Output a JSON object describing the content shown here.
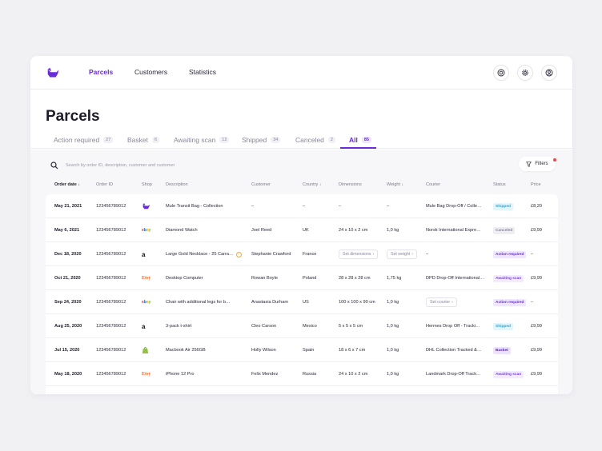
{
  "nav": {
    "parcels": "Parcels",
    "customers": "Customers",
    "statistics": "Statistics"
  },
  "page": {
    "title": "Parcels"
  },
  "tabs": [
    {
      "label": "Action required",
      "count": "27"
    },
    {
      "label": "Basket",
      "count": "6"
    },
    {
      "label": "Awaiting scan",
      "count": "12"
    },
    {
      "label": "Shipped",
      "count": "34"
    },
    {
      "label": "Canceled",
      "count": "2"
    },
    {
      "label": "All",
      "count": "85"
    }
  ],
  "search": {
    "placeholder": "Search by order ID, description, customer and customer"
  },
  "filters_label": "Filters",
  "columns": {
    "order_date": "Order date",
    "order_id": "Order ID",
    "shop": "Shop",
    "description": "Description",
    "customer": "Customer",
    "country": "Country",
    "dimensions": "Dimensions",
    "weight": "Weight",
    "courier": "Courier",
    "status": "Status",
    "price": "Price"
  },
  "colors": {
    "accent": "#6a2bd9",
    "ebay": "#e53238",
    "etsy": "#f1641e",
    "shopify": "#95bf47"
  },
  "rows": [
    {
      "date": "May 21, 2021",
      "id": "123456789012",
      "shop": "logo",
      "description": "Mule Transit Bag - Collection",
      "customer": "–",
      "country": "–",
      "dimensions": "–",
      "weight": "–",
      "courier": "Mule Bag Drop-Off / Colle…",
      "status": "Shipped",
      "price": "£8,20"
    },
    {
      "date": "May 6, 2021",
      "id": "123456789012",
      "shop": "ebay",
      "description": "Diamond Watch",
      "customer": "Joel Reed",
      "country": "UK",
      "dimensions": "24 x 10 x 2 cm",
      "weight": "1,0 kg",
      "courier": "Norsk International Expre…",
      "status": "Canceled",
      "price": "£9,99"
    },
    {
      "date": "Dec 18, 2020",
      "id": "123456789012",
      "shop": "amazon",
      "description": "Large Gold Necklace - 25 Carra…",
      "customer": "Stephanie Crawford",
      "country": "France",
      "dimensions": "Set dimensions",
      "weight": "Set weight",
      "courier": "–",
      "status": "Action required",
      "price": "–"
    },
    {
      "date": "Oct 21, 2020",
      "id": "123456789012",
      "shop": "etsy",
      "description": "Desktop Computer",
      "customer": "Rowan Boyle",
      "country": "Poland",
      "dimensions": "28 x 28 x 28 cm",
      "weight": "1,75 kg",
      "courier": "DPD Drop-Off International…",
      "status": "Awaiting scan",
      "price": "£9,99"
    },
    {
      "date": "Sep 24, 2020",
      "id": "123456789012",
      "shop": "ebay",
      "description": "Chair with additional legs for b…",
      "customer": "Anastasia Durham",
      "country": "US",
      "dimensions": "100 x 100 x 90 cm",
      "weight": "1,0 kg",
      "courier": "Set courier",
      "status": "Action required",
      "price": "–"
    },
    {
      "date": "Aug 25, 2020",
      "id": "123456789012",
      "shop": "amazon",
      "description": "3-pack t-shirt",
      "customer": "Cleo Carson",
      "country": "Mexico",
      "dimensions": "5 x 5 x 5 cm",
      "weight": "1,0 kg",
      "courier": "Hermes Drop Off - Tracki…",
      "status": "Shipped",
      "price": "£9,99"
    },
    {
      "date": "Jul 15, 2020",
      "id": "123456789012",
      "shop": "shopify",
      "description": "Macbook Air 256GB",
      "customer": "Holly Wilson",
      "country": "Spain",
      "dimensions": "18 x 6 x 7 cm",
      "weight": "1,0 kg",
      "courier": "DHL Collection Tracked &…",
      "status": "Basket",
      "price": "£9,99"
    },
    {
      "date": "May 18, 2020",
      "id": "123456789012",
      "shop": "etsy",
      "description": "iPhone 12 Pro",
      "customer": "Felix Mendez",
      "country": "Russia",
      "dimensions": "24 x 10 x 2 cm",
      "weight": "1,0 kg",
      "courier": "Landmark Drop-Off Track…",
      "status": "Awaiting scan",
      "price": "£9,99"
    }
  ]
}
